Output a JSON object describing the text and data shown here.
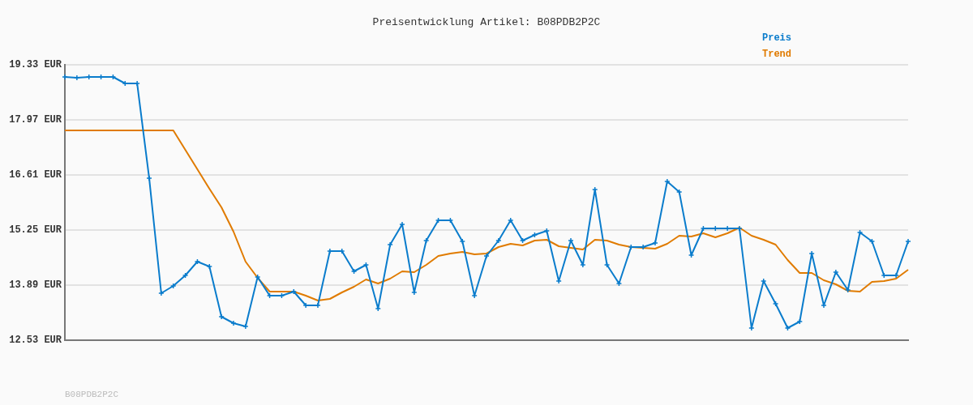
{
  "chart_data": {
    "type": "line",
    "title": "Preisentwicklung Artikel: B08PDB2P2C",
    "categories": [
      null,
      null,
      null,
      null,
      null,
      null,
      null,
      null,
      null,
      null,
      null,
      null,
      null,
      null,
      null,
      null,
      null,
      null,
      null,
      null,
      null,
      null,
      null,
      null,
      null,
      null,
      null,
      null,
      null,
      null,
      null,
      null,
      null,
      null,
      null,
      null,
      null,
      null,
      null,
      null,
      null,
      null,
      null,
      null,
      null,
      null,
      null,
      null,
      null,
      null,
      null,
      null,
      null,
      null,
      null,
      null,
      null,
      null,
      null,
      null,
      null,
      null,
      null,
      null,
      null,
      null,
      null,
      null,
      null,
      null,
      null
    ],
    "series": [
      {
        "name": "Preis",
        "color": "#0a7ccc",
        "marker": "cross",
        "values": [
          19.03,
          19.01,
          19.03,
          19.03,
          19.03,
          18.87,
          18.87,
          16.53,
          13.69,
          13.87,
          14.13,
          14.47,
          14.35,
          13.11,
          12.95,
          12.87,
          14.09,
          13.63,
          13.63,
          13.73,
          13.39,
          13.39,
          14.73,
          14.73,
          14.23,
          14.39,
          13.31,
          14.89,
          15.39,
          13.71,
          14.99,
          15.49,
          15.49,
          14.97,
          13.63,
          14.61,
          14.99,
          15.49,
          14.99,
          15.13,
          15.23,
          13.99,
          14.99,
          14.39,
          16.25,
          14.39,
          13.93,
          14.83,
          14.83,
          14.93,
          16.45,
          16.19,
          14.63,
          15.29,
          15.29,
          15.29,
          15.29,
          12.83,
          13.99,
          13.43,
          12.83,
          12.99,
          14.67,
          13.39,
          14.21,
          13.77,
          15.19,
          14.97,
          14.13,
          14.13,
          14.97
        ]
      },
      {
        "name": "Trend",
        "color": "#e07b00",
        "marker": "none",
        "values": [
          17.71,
          17.71,
          17.71,
          17.71,
          17.71,
          17.71,
          17.71,
          17.71,
          17.71,
          17.71,
          17.23,
          16.75,
          16.27,
          15.81,
          15.21,
          14.47,
          14.07,
          13.73,
          13.73,
          13.73,
          13.63,
          13.51,
          13.55,
          13.71,
          13.85,
          14.03,
          13.93,
          14.05,
          14.23,
          14.21,
          14.39,
          14.61,
          14.67,
          14.71,
          14.65,
          14.67,
          14.83,
          14.91,
          14.87,
          14.99,
          15.01,
          14.85,
          14.81,
          14.77,
          15.01,
          14.99,
          14.89,
          14.83,
          14.81,
          14.79,
          14.91,
          15.11,
          15.09,
          15.17,
          15.07,
          15.17,
          15.31,
          15.11,
          15.01,
          14.89,
          14.51,
          14.19,
          14.19,
          14.01,
          13.91,
          13.75,
          13.73,
          13.97,
          13.99,
          14.05,
          14.27
        ]
      }
    ],
    "ylim": [
      12.53,
      19.33
    ],
    "yticks": [
      {
        "value": 12.53,
        "label": "12.53 EUR"
      },
      {
        "value": 13.89,
        "label": "13.89 EUR"
      },
      {
        "value": 15.25,
        "label": "15.25 EUR"
      },
      {
        "value": 16.61,
        "label": "16.61 EUR"
      },
      {
        "value": 17.97,
        "label": "17.97 EUR"
      },
      {
        "value": 19.33,
        "label": "19.33 EUR"
      }
    ],
    "tick_labels": "y",
    "grid": "y",
    "legend": "top right",
    "line_style": "solid",
    "annotations": [
      "B08PDB2P2C"
    ]
  }
}
